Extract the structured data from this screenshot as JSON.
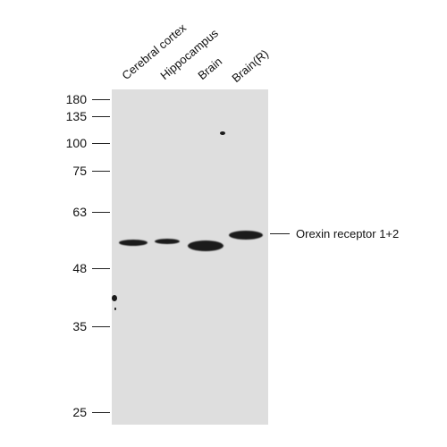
{
  "lanes": [
    {
      "label": "Cerebral cortex"
    },
    {
      "label": "Hippocampus"
    },
    {
      "label": "Brain"
    },
    {
      "label": "Brain(R)"
    }
  ],
  "markers": [
    {
      "label": "180"
    },
    {
      "label": "135"
    },
    {
      "label": "100"
    },
    {
      "label": "75"
    },
    {
      "label": "63"
    },
    {
      "label": "48"
    },
    {
      "label": "35"
    },
    {
      "label": "25"
    }
  ],
  "target": {
    "label": "Orexin receptor 1+2"
  }
}
